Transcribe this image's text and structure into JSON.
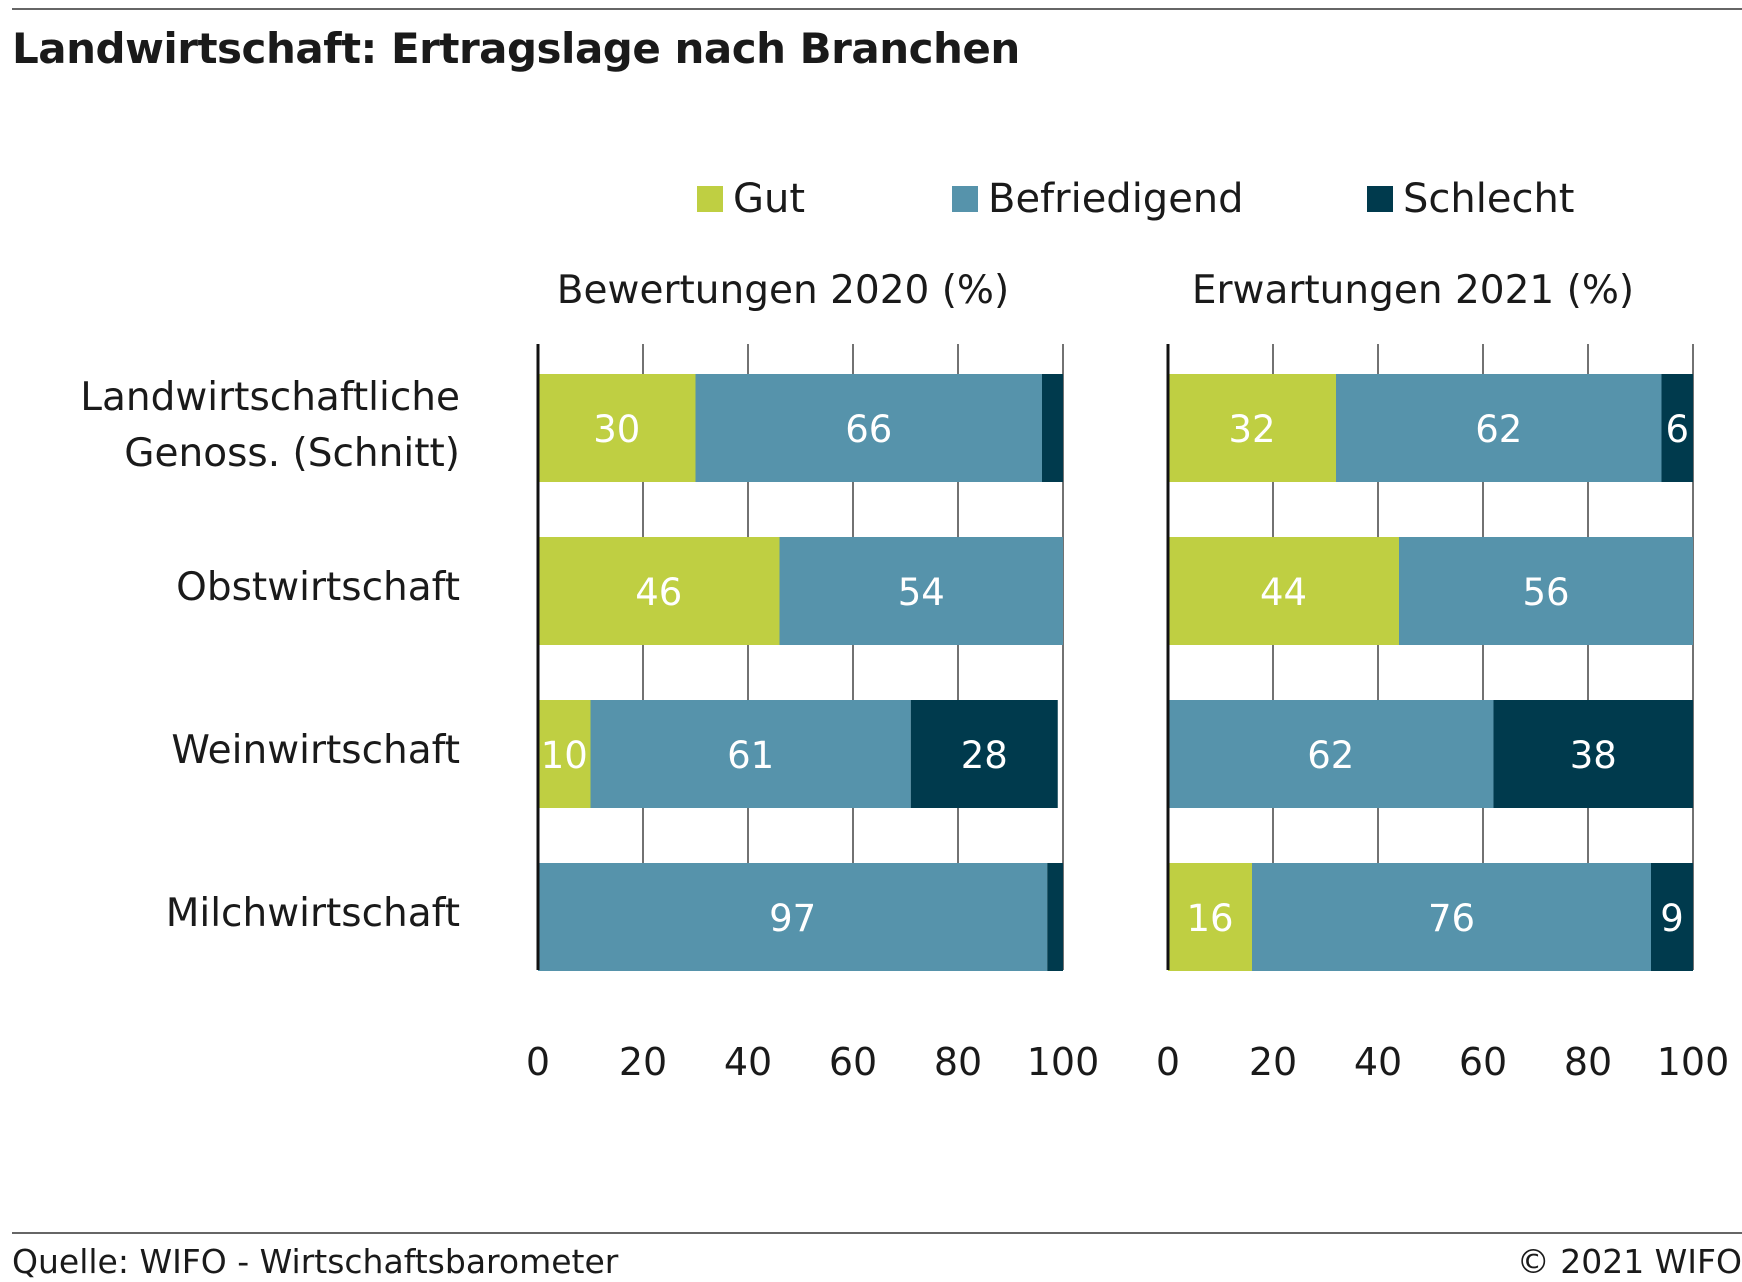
{
  "title": "Landwirtschaft: Ertragslage nach Branchen",
  "legend": [
    {
      "label": "Gut",
      "color": "#bfcf42"
    },
    {
      "label": "Befriedigend",
      "color": "#5693ab"
    },
    {
      "label": "Schlecht",
      "color": "#003a4d"
    }
  ],
  "footer": {
    "source": "Quelle: WIFO - Wirtschaftsbarometer",
    "copyright": "© 2021 WIFO"
  },
  "chart_data": [
    {
      "type": "bar",
      "orientation": "horizontal",
      "stacked": true,
      "title": "Bewertungen 2020 (%)",
      "categories": [
        "Landwirtschaftliche Genoss. (Schnitt)",
        "Obstwirtschaft",
        "Weinwirtschaft",
        "Milchwirtschaft"
      ],
      "series": [
        {
          "name": "Gut",
          "values": [
            30,
            46,
            10,
            0
          ],
          "labels": [
            "30",
            "46",
            "10",
            ""
          ]
        },
        {
          "name": "Befriedigend",
          "values": [
            66,
            54,
            61,
            97
          ],
          "labels": [
            "66",
            "54",
            "61",
            "97"
          ]
        },
        {
          "name": "Schlecht",
          "values": [
            4,
            0,
            28,
            3
          ],
          "labels": [
            "",
            "",
            "28",
            ""
          ]
        }
      ],
      "xlim": [
        0,
        100
      ],
      "xticks": [
        "0",
        "20",
        "40",
        "60",
        "80",
        "100"
      ],
      "grid": true
    },
    {
      "type": "bar",
      "orientation": "horizontal",
      "stacked": true,
      "title": "Erwartungen 2021 (%)",
      "categories": [
        "Landwirtschaftliche Genoss. (Schnitt)",
        "Obstwirtschaft",
        "Weinwirtschaft",
        "Milchwirtschaft"
      ],
      "series": [
        {
          "name": "Gut",
          "values": [
            32,
            44,
            0,
            16
          ],
          "labels": [
            "32",
            "44",
            "",
            "16"
          ]
        },
        {
          "name": "Befriedigend",
          "values": [
            62,
            56,
            62,
            76
          ],
          "labels": [
            "62",
            "56",
            "62",
            "76"
          ]
        },
        {
          "name": "Schlecht",
          "values": [
            6,
            0,
            38,
            9
          ],
          "labels": [
            "6",
            "",
            "38",
            "9"
          ]
        }
      ],
      "xlim": [
        0,
        100
      ],
      "xticks": [
        "0",
        "20",
        "40",
        "60",
        "80",
        "100"
      ],
      "grid": true
    }
  ]
}
